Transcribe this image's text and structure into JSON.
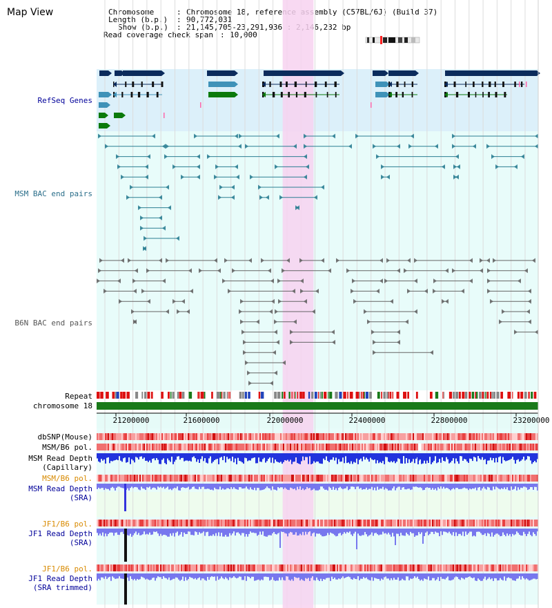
{
  "title": "Map View",
  "info": {
    "chromosome_key": "Chromosome",
    "chromosome_val": "Chromosome 18, reference assembly (C57BL/6J) (Build 37)",
    "length_key": "Length (b.p.)",
    "length_val": "90,772,031",
    "show_key": "Show (b.p.)",
    "show_val": "21,145,705-23,291,936 : 2,146,232 bp",
    "coverage_key": "Read coverage check span",
    "coverage_val": "10,000"
  },
  "region": {
    "start": 21145705,
    "end": 23291936,
    "highlight_start": 22050000,
    "highlight_end": 22200000
  },
  "tracks": {
    "refseq": "RefSeq Genes",
    "msm_bac": "MSM BAC end pairs",
    "b6n_bac": "B6N BAC end pairs",
    "repeat": "Repeat",
    "chromosome": "chromosome 18",
    "dbsnp": "dbSNP(Mouse)",
    "msm_b6_pol_1": "MSM/B6 pol.",
    "msm_depth_cap_1": "MSM Read Depth",
    "msm_depth_cap_2": "(Capillary)",
    "msm_b6_pol_2": "MSM/B6 pol.",
    "msm_depth_sra_1": "MSM Read Depth",
    "msm_depth_sra_2": "(SRA)",
    "jf1_b6_pol_1": "JF1/B6 pol.",
    "jf1_depth_sra_1": "JF1 Read Depth",
    "jf1_depth_sra_2": "(SRA)",
    "jf1_b6_pol_2": "JF1/B6 pol.",
    "jf1_depth_trim_1": "JF1 Read Depth",
    "jf1_depth_trim_2": "(SRA trimmed)"
  },
  "axis": {
    "ticks": [
      "21200000",
      "21600000",
      "22000000",
      "22400000",
      "22800000",
      "23200000"
    ]
  },
  "colors": {
    "refseq_bg": "#dcf0fa",
    "bac_bg": "#e8fcfa",
    "highlight": "#f7d2f0",
    "gene_dark": "#0b2b5c",
    "gene_mid": "#3f92b8",
    "gene_green": "#0b7a0b",
    "msm_bac": "#2a7e92",
    "b6n_bac": "#646464",
    "chrom_bar": "#1a7a1a",
    "depth_cap": "#2233dd",
    "depth_sra": "#7777ee",
    "label_blue": "#000099",
    "label_orange": "#d88a00"
  }
}
